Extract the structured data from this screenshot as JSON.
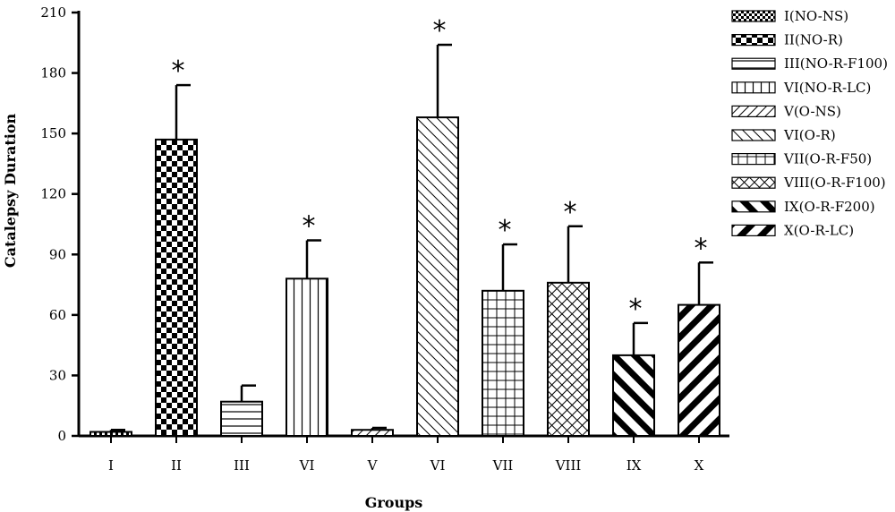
{
  "chart_data": {
    "type": "bar",
    "xlabel": "Groups",
    "ylabel": "Catalepsy Duration",
    "ylim": [
      0,
      210
    ],
    "yticks": [
      0,
      30,
      60,
      90,
      120,
      150,
      180,
      210
    ],
    "categories": [
      "I",
      "II",
      "III",
      "VI",
      "V",
      "VI",
      "VII",
      "VIII",
      "IX",
      "X"
    ],
    "values": [
      2,
      147,
      17,
      78,
      3,
      158,
      72,
      76,
      40,
      65
    ],
    "errors": [
      1,
      27,
      8,
      19,
      1,
      36,
      23,
      28,
      16,
      21
    ],
    "significant": [
      false,
      true,
      false,
      true,
      false,
      true,
      true,
      true,
      true,
      true
    ],
    "significance_marker": "*",
    "legend": [
      {
        "label": "I(NO-NS)",
        "pattern": "checker-small"
      },
      {
        "label": "II(NO-R)",
        "pattern": "checker-large"
      },
      {
        "label": "III(NO-R-F100)",
        "pattern": "horizontal"
      },
      {
        "label": "VI(NO-R-LC)",
        "pattern": "vertical"
      },
      {
        "label": "V(O-NS)",
        "pattern": "diag-up"
      },
      {
        "label": "VI(O-R)",
        "pattern": "diag-down"
      },
      {
        "label": "VII(O-R-F50)",
        "pattern": "grid"
      },
      {
        "label": "VIII(O-R-F100)",
        "pattern": "crosshatch"
      },
      {
        "label": "IX(O-R-F200)",
        "pattern": "thick-diag-down"
      },
      {
        "label": "X(O-R-LC)",
        "pattern": "thick-diag-up"
      }
    ],
    "bar_patterns": [
      "checker-small",
      "checker-large",
      "horizontal",
      "vertical",
      "diag-up",
      "diag-down",
      "grid",
      "crosshatch",
      "thick-diag-down",
      "thick-diag-up"
    ],
    "legend_position": "right",
    "grid": false
  }
}
